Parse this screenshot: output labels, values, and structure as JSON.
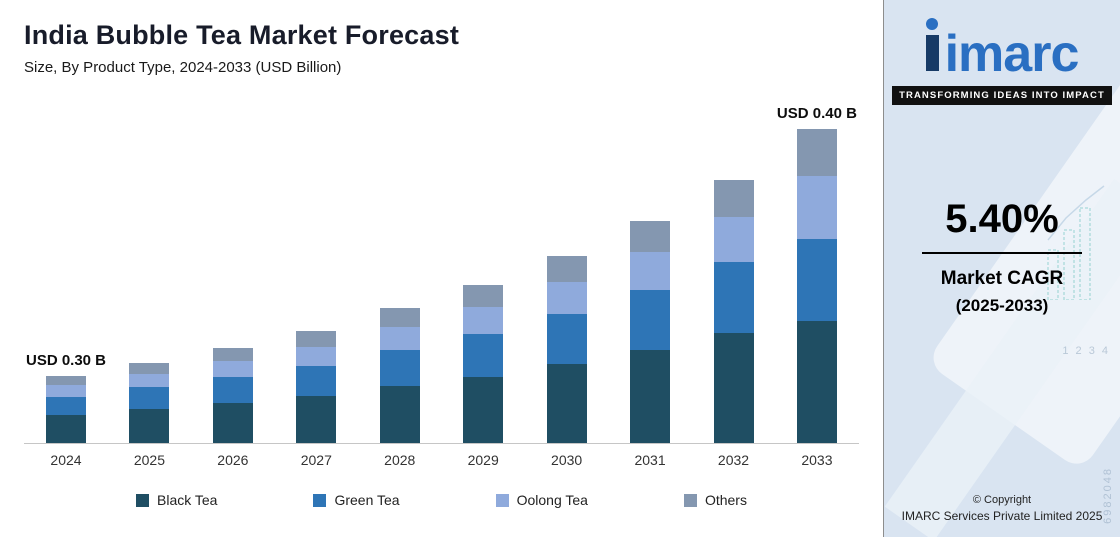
{
  "header": {
    "title": "India Bubble Tea Market Forecast",
    "subtitle": "Size, By Product Type, 2024-2033 (USD Billion)"
  },
  "chart_data": {
    "type": "bar",
    "stacked": true,
    "title": "India Bubble Tea Market Forecast",
    "subtitle": "Size, By Product Type, 2024-2033 (USD Billion)",
    "categories": [
      "2024",
      "2025",
      "2026",
      "2027",
      "2028",
      "2029",
      "2030",
      "2031",
      "2032",
      "2033"
    ],
    "series": [
      {
        "name": "Black Tea",
        "key": "black-tea",
        "color": "#1f4e63",
        "values": [
          28,
          34,
          40,
          47,
          57,
          66,
          79,
          93,
          110,
          122
        ]
      },
      {
        "name": "Green Tea",
        "key": "green-tea",
        "color": "#2e75b6",
        "values": [
          18,
          22,
          26,
          30,
          36,
          43,
          50,
          60,
          71,
          82
        ]
      },
      {
        "name": "Oolong Tea",
        "key": "oolong-tea",
        "color": "#8faadc",
        "values": [
          12,
          13,
          16,
          19,
          23,
          27,
          32,
          38,
          45,
          63
        ]
      },
      {
        "name": "Others",
        "key": "others",
        "color": "#8497b0",
        "values": [
          9,
          11,
          13,
          16,
          19,
          22,
          26,
          31,
          37,
          47
        ]
      }
    ],
    "units_note": "no value axis shown; segment values are relative bar heights (px), totals labeled only for first and last year",
    "annotations": [
      {
        "category": "2024",
        "text": "USD 0.30 B"
      },
      {
        "category": "2033",
        "text": "USD 0.40 B"
      }
    ],
    "legend_position": "bottom",
    "grid": false
  },
  "sidebar": {
    "logo_text": "imarc",
    "tagline": "TRANSFORMING IDEAS INTO IMPACT",
    "cagr_value": "5.40%",
    "cagr_label_1": "Market CAGR",
    "cagr_label_2": "(2025-2033)",
    "copyright_line1": "© Copyright",
    "copyright_line2": "IMARC Services Private Limited 2025"
  },
  "decor": {
    "ticks": "1 2 3 4",
    "serial": "6982048"
  }
}
